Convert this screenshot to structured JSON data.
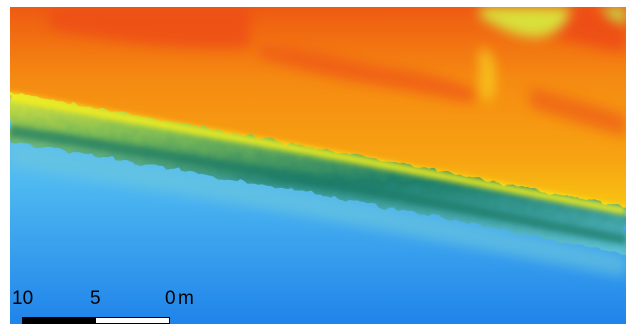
{
  "map": {
    "description_colors": {
      "deep": "#1e88ee",
      "shallow": "#5cc4f3",
      "shelf": "#1d7f6b",
      "shore": "#f6ef18",
      "land": "#f49a10",
      "land_high": "#ef5c12",
      "peak": "#f3ee3a"
    }
  },
  "scale_bar": {
    "labels": [
      "10",
      "5",
      "0"
    ],
    "unit": "m",
    "colors": {
      "filled": "#000000",
      "empty": "#ffffff"
    }
  }
}
